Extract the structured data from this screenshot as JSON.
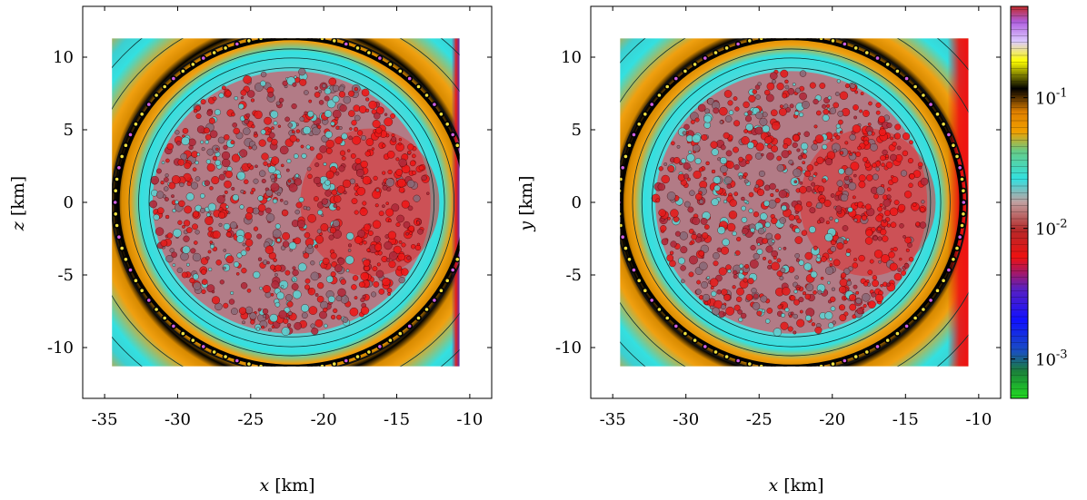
{
  "chart_data": [
    {
      "type": "heatmap",
      "panel": "left",
      "title": "",
      "xlabel_var": "x",
      "xlabel_unit": "[km]",
      "ylabel_var": "z",
      "ylabel_unit": "[km]",
      "xlim": [
        -36.5,
        -8.5
      ],
      "ylim": [
        -13.5,
        13.5
      ],
      "data_extent": {
        "x": [
          -34.5,
          -10.7
        ],
        "y": [
          -11.3,
          11.3
        ]
      },
      "xticks": [
        -35,
        -30,
        -25,
        -20,
        -15,
        -10
      ],
      "xtick_labels": [
        "-35",
        "-30",
        "-25",
        "-20",
        "-15",
        "-10"
      ],
      "yticks": [
        10,
        5,
        0,
        -5,
        -10
      ],
      "ytick_labels": [
        "10",
        "5",
        "0",
        "-5",
        "-10"
      ],
      "ellipse": {
        "center": [
          -22.2,
          0
        ],
        "semi_axes": [
          11.9,
          11.3
        ]
      },
      "corner_color": "#5a2db0"
    },
    {
      "type": "heatmap",
      "panel": "right",
      "title": "",
      "xlabel_var": "x",
      "xlabel_unit": "[km]",
      "ylabel_var": "y",
      "ylabel_unit": "[km]",
      "xlim": [
        -36.5,
        -8.5
      ],
      "ylim": [
        -13.5,
        13.5
      ],
      "data_extent": {
        "x": [
          -34.5,
          -10.7
        ],
        "y": [
          -11.3,
          11.3
        ]
      },
      "xticks": [
        -35,
        -30,
        -25,
        -20,
        -15,
        -10
      ],
      "xtick_labels": [
        "-35",
        "-30",
        "-25",
        "-20",
        "-15",
        "-10"
      ],
      "yticks": [
        10,
        5,
        0,
        -5,
        -10
      ],
      "ytick_labels": [
        "10",
        "5",
        "0",
        "-5",
        "-10"
      ],
      "ellipse": {
        "center": [
          -22.8,
          0
        ],
        "semi_axes": [
          11.6,
          11.3
        ]
      },
      "corner_color": "#ee1111"
    },
    {
      "type": "colorbar",
      "scale": "log",
      "range": [
        0.0005,
        0.5
      ],
      "ticks": [
        0.1,
        0.01,
        0.001
      ],
      "tick_labels": [
        {
          "base": "10",
          "exp": "-1"
        },
        {
          "base": "10",
          "exp": "-2"
        },
        {
          "base": "10",
          "exp": "-3"
        }
      ],
      "colormap": [
        {
          "stop": 0.0,
          "color": "#22dd22"
        },
        {
          "stop": 0.07,
          "color": "#1b7f3c"
        },
        {
          "stop": 0.12,
          "color": "#1a4fc0"
        },
        {
          "stop": 0.2,
          "color": "#1111ff"
        },
        {
          "stop": 0.28,
          "color": "#5a20c0"
        },
        {
          "stop": 0.36,
          "color": "#ee1111"
        },
        {
          "stop": 0.43,
          "color": "#b52a2a"
        },
        {
          "stop": 0.5,
          "color": "#c0a0a0"
        },
        {
          "stop": 0.56,
          "color": "#33e0e0"
        },
        {
          "stop": 0.63,
          "color": "#66cc88"
        },
        {
          "stop": 0.68,
          "color": "#f0a000"
        },
        {
          "stop": 0.73,
          "color": "#e08000"
        },
        {
          "stop": 0.79,
          "color": "#000000"
        },
        {
          "stop": 0.86,
          "color": "#ffff00"
        },
        {
          "stop": 0.91,
          "color": "#ddccff"
        },
        {
          "stop": 0.96,
          "color": "#b060e0"
        },
        {
          "stop": 1.0,
          "color": "#c02a2a"
        }
      ]
    }
  ]
}
